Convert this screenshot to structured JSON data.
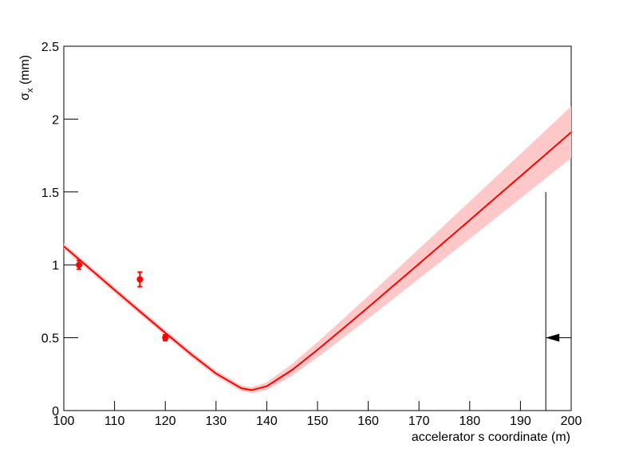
{
  "chart_data": {
    "type": "fit",
    "y_label": [
      "σ",
      "x",
      " (mm)"
    ],
    "x_label": "accelerator s coordinate (m)",
    "xlim": [
      100,
      200
    ],
    "ylim": [
      0,
      2.5
    ],
    "xticks": [
      100,
      110,
      120,
      130,
      140,
      150,
      160,
      170,
      180,
      190,
      200
    ],
    "yticks": [
      0,
      0.5,
      1,
      1.5,
      2,
      2.5
    ],
    "color": "#ff0000",
    "band_color": "#ffc8c8",
    "points": {
      "x": [
        103,
        115,
        120
      ],
      "y": [
        1.0,
        0.9,
        0.5
      ],
      "errors": [
        0.03,
        0.05,
        0.02
      ]
    },
    "fit": {
      "x": [
        100,
        105,
        110,
        115,
        120,
        125,
        130,
        135,
        137,
        140,
        145,
        150,
        155,
        160,
        165,
        170,
        175,
        180,
        185,
        190,
        195,
        200
      ],
      "values": [
        1.127,
        0.978,
        0.828,
        0.68,
        0.533,
        0.389,
        0.254,
        0.153,
        0.14,
        0.167,
        0.279,
        0.417,
        0.562,
        0.709,
        0.858,
        1.007,
        1.157,
        1.307,
        1.458,
        1.608,
        1.759,
        1.91
      ],
      "band_upper": [
        1.147,
        0.998,
        0.848,
        0.7,
        0.553,
        0.409,
        0.274,
        0.173,
        0.16,
        0.1945,
        0.319,
        0.4695,
        0.627,
        0.7865,
        0.948,
        1.1095,
        1.272,
        1.4345,
        1.598,
        1.7605,
        1.924,
        2.0875
      ],
      "band_lower": [
        1.107,
        0.958,
        0.808,
        0.66,
        0.513,
        0.369,
        0.234,
        0.133,
        0.12,
        0.1395,
        0.239,
        0.3645,
        0.497,
        0.6315,
        0.768,
        0.9045,
        1.042,
        1.1795,
        1.318,
        1.4555,
        1.594,
        1.7325
      ]
    },
    "cut_line": {
      "x": 195,
      "y": [
        0,
        1.5
      ]
    },
    "arrow": {
      "x": [
        200,
        195
      ],
      "y": 0.5
    }
  }
}
